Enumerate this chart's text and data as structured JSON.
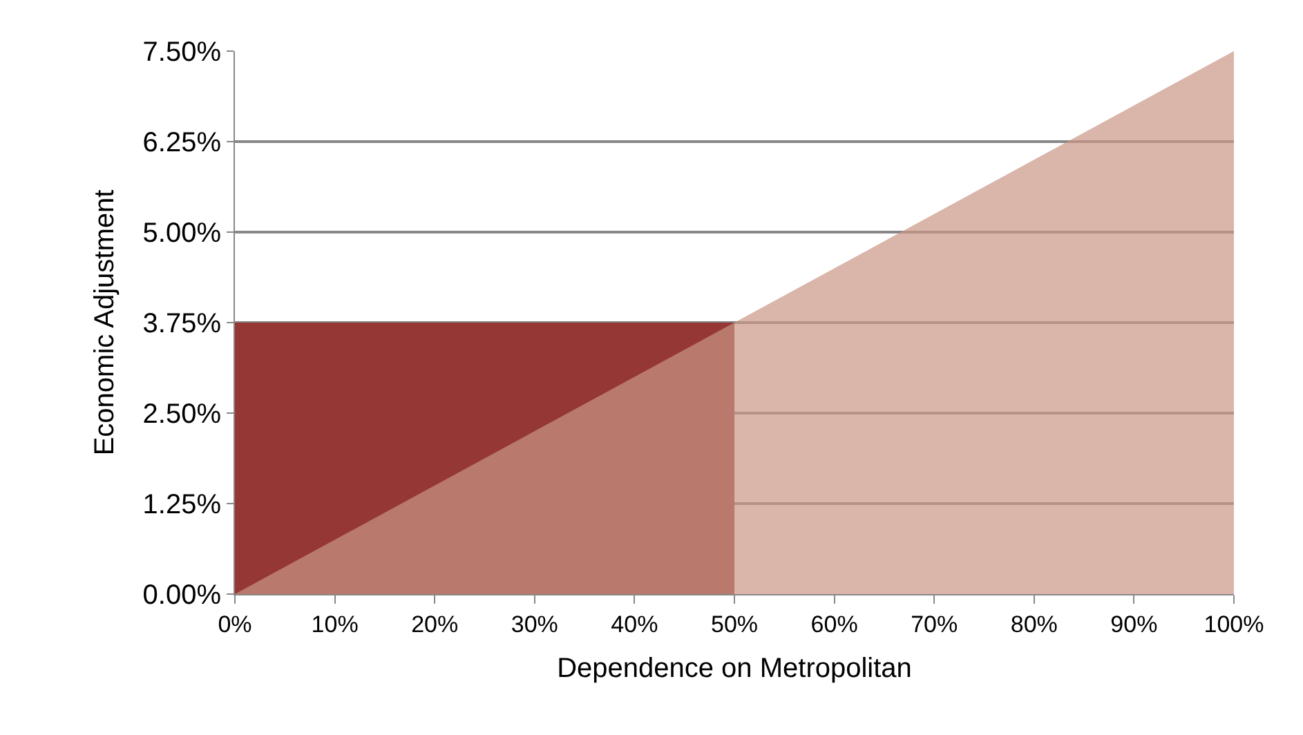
{
  "chart_data": {
    "type": "area",
    "xlabel": "Dependence on Metropolitan",
    "ylabel": "Economic Adjustment",
    "series": [
      {
        "x": [
          0,
          50
        ],
        "values": [
          3.75,
          3.75
        ],
        "color": "#953735"
      },
      {
        "x": [
          0,
          100
        ],
        "values": [
          0,
          7.5
        ],
        "color": "#c99586"
      }
    ],
    "xlim": [
      0,
      100
    ],
    "xticks": [
      {
        "value": 0,
        "label": "0%"
      },
      {
        "value": 10,
        "label": "10%"
      },
      {
        "value": 20,
        "label": "20%"
      },
      {
        "value": 30,
        "label": "30%"
      },
      {
        "value": 40,
        "label": "40%"
      },
      {
        "value": 50,
        "label": "50%"
      },
      {
        "value": 60,
        "label": "60%"
      },
      {
        "value": 70,
        "label": "70%"
      },
      {
        "value": 80,
        "label": "80%"
      },
      {
        "value": 90,
        "label": "90%"
      },
      {
        "value": 100,
        "label": "100%"
      }
    ],
    "ylim": [
      0,
      7.5
    ],
    "yticks": [
      {
        "value": 0,
        "label": "0.00%"
      },
      {
        "value": 1.25,
        "label": "1.25%"
      },
      {
        "value": 2.5,
        "label": "2.50%"
      },
      {
        "value": 3.75,
        "label": "3.75%"
      },
      {
        "value": 5,
        "label": "5.00%"
      },
      {
        "value": 6.25,
        "label": "6.25%"
      },
      {
        "value": 7.5,
        "label": "7.50%"
      }
    ],
    "grid": "y"
  }
}
